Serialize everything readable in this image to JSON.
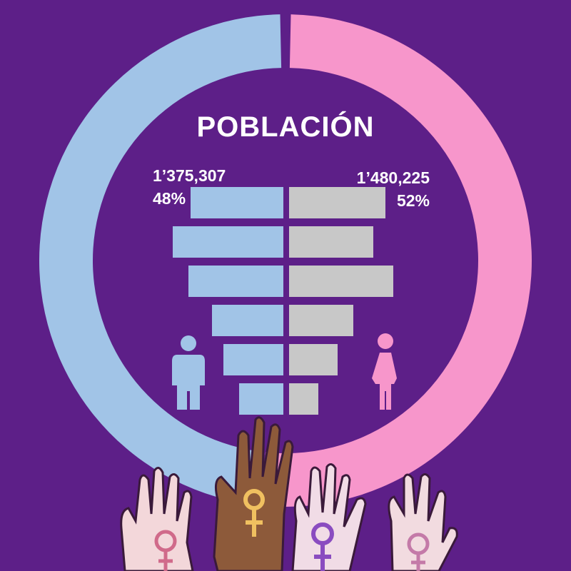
{
  "title": "POBLACIÓN",
  "colors": {
    "background": "#5d1f88",
    "men": "#a1c4e7",
    "women": "#f796cb",
    "women_bars": "#c8c8c8",
    "text": "#ffffff"
  },
  "men": {
    "count": "1’375,307",
    "percent": "48%"
  },
  "women": {
    "count": "1’480,225",
    "percent": "52%"
  },
  "icons": [
    "man-icon",
    "woman-icon",
    "raised-hands-with-venus-symbols-illustration"
  ],
  "chart_data": [
    {
      "type": "pie",
      "subtype": "donut",
      "title": "POBLACIÓN",
      "slices": [
        {
          "label": "1’375,307",
          "value": 1375307,
          "percent": 48,
          "color": "#a1c4e7"
        },
        {
          "label": "1’480,225",
          "value": 1480225,
          "percent": 52,
          "color": "#f796cb"
        }
      ]
    },
    {
      "type": "bar",
      "subtype": "population-pyramid",
      "series": [
        {
          "side": "left",
          "color": "#a1c4e7",
          "values": [
            130,
            155,
            133,
            100,
            84,
            62
          ]
        },
        {
          "side": "right",
          "color": "#c8c8c8",
          "values": [
            135,
            118,
            146,
            90,
            68,
            41
          ]
        }
      ],
      "xlim": [
        0,
        160
      ]
    }
  ]
}
